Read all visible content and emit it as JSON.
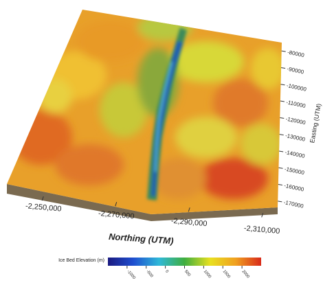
{
  "chart_data": {
    "type": "surface3d",
    "xlabel": "Northing (UTM)",
    "ylabel": "Easting (UTM)",
    "xlim": [
      -2240000,
      -2314000
    ],
    "xticks": [
      {
        "value": -2250000,
        "label": "-2,250,000"
      },
      {
        "value": -2270000,
        "label": "-2,270,000"
      },
      {
        "value": -2290000,
        "label": "-2,290,000"
      },
      {
        "value": -2310000,
        "label": "-2,310,000"
      }
    ],
    "ylim": [
      -75000,
      -175000
    ],
    "yticks": [
      -80000,
      -90000,
      -100000,
      -110000,
      -120000,
      -130000,
      -140000,
      -150000,
      -160000,
      -170000
    ],
    "colorbar": {
      "label": "Ice Bed Elevation (m)",
      "lim": [
        -1500,
        2500
      ],
      "ticks": [
        -1000,
        -500,
        0,
        500,
        1000,
        1500,
        2000
      ],
      "colors": [
        "#1a1a80",
        "#1f4fd0",
        "#2fb8d8",
        "#3fae3f",
        "#e8e020",
        "#f0a020",
        "#d82a1a"
      ]
    }
  }
}
